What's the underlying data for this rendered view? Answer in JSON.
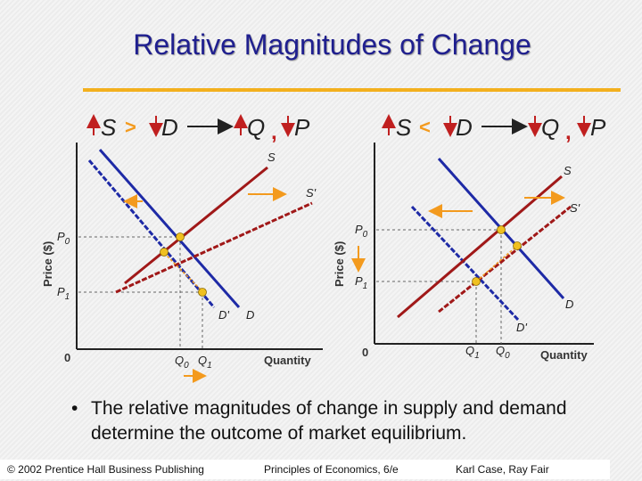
{
  "title": "Relative Magnitudes of Change",
  "bullet_symbol": "•",
  "bullet_text": "The relative magnitudes of change in supply and demand determine the outcome of market equilibrium.",
  "footer": {
    "left": "© 2002 Prentice Hall Business Publishing",
    "center": "Principles of Economics, 6/e",
    "right": "Karl Case, Ray Fair"
  },
  "colors": {
    "title": "#1f1f8f",
    "rule": "#f3b01e",
    "supply": "#a01818",
    "demand": "#1e2aa6",
    "arrow": "#f39a1e",
    "point": "#f0c020",
    "increase_arrow": "#c02020",
    "decrease_arrow": "#c02020"
  },
  "left_panel": {
    "header": {
      "s_symbol": "S",
      "comparator": ">",
      "d_symbol": "D",
      "q_symbol": "Q",
      "separator": ",",
      "p_symbol": "P"
    },
    "y_axis_label": "Price ($)",
    "x_axis_label": "Quantity",
    "origin": "0",
    "p0": "P",
    "p0_sub": "0",
    "p1": "P",
    "p1_sub": "1",
    "q0": "Q",
    "q0_sub": "0",
    "q1": "Q",
    "q1_sub": "1",
    "supply_label": "S",
    "supply_new_label": "S'",
    "demand_label": "D",
    "demand_new_label": "D'"
  },
  "right_panel": {
    "header": {
      "s_symbol": "S",
      "comparator": "<",
      "d_symbol": "D",
      "q_symbol": "Q",
      "separator": ",",
      "p_symbol": "P"
    },
    "y_axis_label": "Price ($)",
    "x_axis_label": "Quantity",
    "origin": "0",
    "p0": "P",
    "p0_sub": "0",
    "p1": "P",
    "p1_sub": "1",
    "q0": "Q",
    "q0_sub": "0",
    "q1": "Q",
    "q1_sub": "1",
    "supply_label": "S",
    "supply_new_label": "S'",
    "demand_label": "D",
    "demand_new_label": "D'"
  }
}
